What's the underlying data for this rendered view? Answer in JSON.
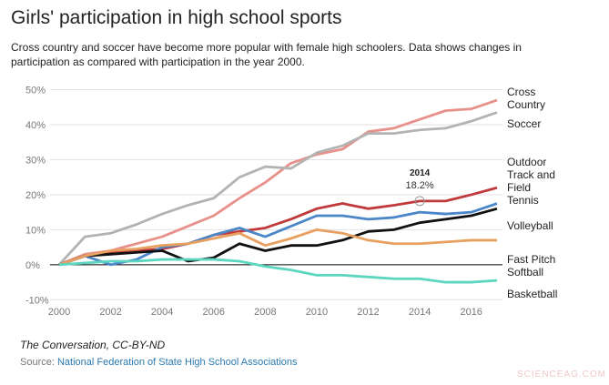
{
  "chart_data": {
    "type": "line",
    "title": "Girls' participation in high school sports",
    "subtitle": "Cross country and soccer have become more popular with female high schoolers. Data shows changes in participation as compared with participation in the year 2000.",
    "x": [
      2000,
      2001,
      2002,
      2003,
      2004,
      2005,
      2006,
      2007,
      2008,
      2009,
      2010,
      2011,
      2012,
      2013,
      2014,
      2015,
      2016,
      2017
    ],
    "xlim": [
      2000,
      2017
    ],
    "xticks": [
      2000,
      2002,
      2004,
      2006,
      2008,
      2010,
      2012,
      2014,
      2016
    ],
    "ylim": [
      -12,
      53
    ],
    "yticks": [
      {
        "value": -10,
        "label": "-10%"
      },
      {
        "value": 0,
        "label": "0%"
      },
      {
        "value": 10,
        "label": "10%"
      },
      {
        "value": 20,
        "label": "20%"
      },
      {
        "value": 30,
        "label": "30%"
      },
      {
        "value": 40,
        "label": "40%"
      },
      {
        "value": 50,
        "label": "50%"
      }
    ],
    "grid": true,
    "series": [
      {
        "name": "Cross Country",
        "color": "#e8908a",
        "values": [
          0,
          3,
          4,
          6,
          8,
          11,
          14,
          19,
          23.5,
          29,
          31.5,
          33,
          38,
          39,
          41.5,
          44,
          44.5,
          47
        ]
      },
      {
        "name": "Soccer",
        "color": "#b3b3b3",
        "values": [
          0,
          8,
          9,
          11.5,
          14.5,
          17,
          19,
          25,
          28,
          27.5,
          32,
          34,
          37.5,
          37.5,
          38.5,
          39,
          41,
          43.5
        ]
      },
      {
        "name": "Outdoor Track and Field",
        "color": "#c0393b",
        "values": [
          0,
          2.5,
          3.5,
          4,
          4.5,
          6,
          8.5,
          9.5,
          10.5,
          13,
          16,
          17.5,
          16,
          17,
          18.2,
          18.2,
          20,
          22
        ]
      },
      {
        "name": "Tennis",
        "color": "#4a86c8",
        "values": [
          0,
          2.5,
          0,
          1.5,
          5,
          6,
          8.5,
          10.5,
          8,
          11,
          14,
          14,
          13,
          13.5,
          15,
          14.5,
          15,
          17.5
        ]
      },
      {
        "name": "Volleyball",
        "color": "#111111",
        "values": [
          0,
          2.5,
          3,
          3.5,
          4,
          1,
          2,
          6,
          4,
          5.5,
          5.5,
          7,
          9.5,
          10,
          12,
          13,
          14,
          16
        ]
      },
      {
        "name": "Fast Pitch Softball",
        "color": "#e8a060",
        "values": [
          0,
          2.5,
          4,
          4.5,
          5.5,
          6,
          7.5,
          9,
          5.5,
          7.5,
          10,
          9,
          7,
          6,
          6,
          6.5,
          7,
          7
        ]
      },
      {
        "name": "Basketball",
        "color": "#5dd6c0",
        "values": [
          0,
          0.5,
          1,
          1,
          1.5,
          1.5,
          1.5,
          1,
          -0.5,
          -1.5,
          -3,
          -3,
          -3.5,
          -4,
          -4,
          -5,
          -5,
          -4.5
        ]
      }
    ],
    "annotation": {
      "title": "2014",
      "text": "18.2%"
    },
    "credit": "The Conversation, CC-BY-ND",
    "source_label": "Source:",
    "source_link": "National Federation of State High School Associations",
    "watermark": "SCIENCEAG.COM"
  }
}
